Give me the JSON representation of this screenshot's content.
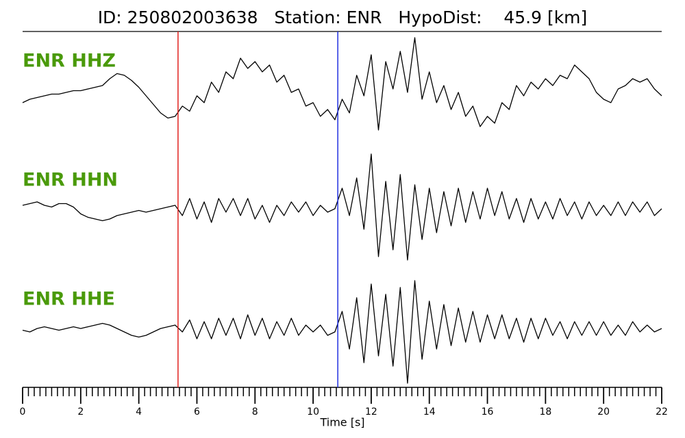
{
  "chart_data": {
    "type": "seismogram",
    "title": "ID: 250802003638   Station: ENR   HypoDist:    45.9 [km]",
    "x_label": "Time [s]",
    "xlim": [
      0,
      22
    ],
    "xticks": [
      0,
      2,
      4,
      6,
      8,
      10,
      12,
      14,
      16,
      18,
      20,
      22
    ],
    "xminor_ticks": [
      0.2,
      0.4,
      0.6,
      0.8,
      1,
      1.2,
      1.4,
      1.6,
      1.8,
      2.2,
      2.4,
      2.6,
      2.8,
      3,
      3.2,
      3.4,
      3.6,
      3.8,
      4.2,
      4.4,
      4.6,
      4.8,
      5,
      5.2,
      5.4,
      5.6,
      5.8,
      6.2,
      6.4,
      6.6,
      6.8,
      7,
      7.2,
      7.4,
      7.6,
      7.8,
      8.2,
      8.4,
      8.6,
      8.8,
      9,
      9.2,
      9.4,
      9.6,
      9.8,
      10.2,
      10.4,
      10.6,
      10.8,
      11,
      11.2,
      11.4,
      11.6,
      11.8,
      12.2,
      12.4,
      12.6,
      12.8,
      13,
      13.2,
      13.4,
      13.6,
      13.8,
      14.2,
      14.4,
      14.6,
      14.8,
      15,
      15.2,
      15.4,
      15.6,
      15.8,
      16.2,
      16.4,
      16.6,
      16.8,
      17,
      17.2,
      17.4,
      17.6,
      17.8,
      18.2,
      18.4,
      18.6,
      18.8,
      19,
      19.2,
      19.4,
      19.6,
      19.8,
      20.2,
      20.4,
      20.6,
      20.8,
      21,
      21.2,
      21.4,
      21.6,
      21.8
    ],
    "ylim": [
      -1.7,
      1.7
    ],
    "picks": [
      {
        "time": 5.35,
        "color": "#e0201c"
      },
      {
        "time": 10.85,
        "color": "#1f2fe0"
      }
    ],
    "x": [
      0,
      0.25,
      0.5,
      0.75,
      1,
      1.25,
      1.5,
      1.75,
      2,
      2.25,
      2.5,
      2.75,
      3,
      3.25,
      3.5,
      3.75,
      4,
      4.25,
      4.5,
      4.75,
      5,
      5.25,
      5.5,
      5.75,
      6,
      6.25,
      6.5,
      6.75,
      7,
      7.25,
      7.5,
      7.75,
      8,
      8.25,
      8.5,
      8.75,
      9,
      9.25,
      9.5,
      9.75,
      10,
      10.25,
      10.5,
      10.75,
      11,
      11.25,
      11.5,
      11.75,
      12,
      12.25,
      12.5,
      12.75,
      13,
      13.25,
      13.5,
      13.75,
      14,
      14.25,
      14.5,
      14.75,
      15,
      15.25,
      15.5,
      15.75,
      16,
      16.25,
      16.5,
      16.75,
      17,
      17.25,
      17.5,
      17.75,
      18,
      18.25,
      18.5,
      18.75,
      19,
      19.25,
      19.5,
      19.75,
      20,
      20.25,
      20.5,
      20.75,
      21,
      21.25,
      21.5,
      21.75,
      22
    ],
    "series": [
      {
        "name": "ENR HHZ",
        "color": "#000000",
        "values": [
          -0.2,
          -0.1,
          -0.05,
          0,
          0.05,
          0.05,
          0.1,
          0.15,
          0.15,
          0.2,
          0.25,
          0.3,
          0.5,
          0.65,
          0.6,
          0.45,
          0.25,
          0,
          -0.25,
          -0.5,
          -0.65,
          -0.6,
          -0.3,
          -0.45,
          0,
          -0.2,
          0.4,
          0.1,
          0.7,
          0.5,
          1.1,
          0.8,
          1.0,
          0.7,
          0.9,
          0.4,
          0.6,
          0.1,
          0.2,
          -0.3,
          -0.2,
          -0.6,
          -0.4,
          -0.7,
          -0.1,
          -0.5,
          0.6,
          0,
          1.2,
          -1.0,
          1.0,
          0.2,
          1.3,
          0.1,
          1.7,
          -0.1,
          0.7,
          -0.2,
          0.3,
          -0.4,
          0.1,
          -0.6,
          -0.3,
          -0.9,
          -0.6,
          -0.8,
          -0.2,
          -0.4,
          0.3,
          0,
          0.4,
          0.2,
          0.5,
          0.3,
          0.6,
          0.5,
          0.9,
          0.7,
          0.5,
          0.1,
          -0.1,
          -0.2,
          0.2,
          0.3,
          0.5,
          0.4,
          0.5,
          0.2,
          0
        ]
      },
      {
        "name": "ENR HHN",
        "color": "#000000",
        "values": [
          0.1,
          0.15,
          0.2,
          0.1,
          0.05,
          0.15,
          0.15,
          0.05,
          -0.15,
          -0.25,
          -0.3,
          -0.35,
          -0.3,
          -0.2,
          -0.15,
          -0.1,
          -0.05,
          -0.1,
          -0.05,
          0,
          0.05,
          0.1,
          -0.2,
          0.3,
          -0.3,
          0.2,
          -0.4,
          0.3,
          -0.1,
          0.3,
          -0.2,
          0.3,
          -0.3,
          0.1,
          -0.4,
          0.1,
          -0.2,
          0.2,
          -0.1,
          0.2,
          -0.2,
          0.1,
          -0.1,
          0,
          0.6,
          -0.2,
          0.9,
          -0.6,
          1.6,
          -1.4,
          0.8,
          -1.2,
          1.0,
          -1.5,
          0.7,
          -0.9,
          0.6,
          -0.7,
          0.5,
          -0.5,
          0.6,
          -0.4,
          0.5,
          -0.3,
          0.6,
          -0.2,
          0.5,
          -0.3,
          0.3,
          -0.4,
          0.3,
          -0.3,
          0.2,
          -0.3,
          0.3,
          -0.2,
          0.2,
          -0.3,
          0.2,
          -0.2,
          0.1,
          -0.2,
          0.2,
          -0.2,
          0.2,
          -0.1,
          0.2,
          -0.2,
          0
        ]
      },
      {
        "name": "ENR HHE",
        "color": "#000000",
        "values": [
          -0.05,
          -0.1,
          0,
          0.05,
          0,
          -0.05,
          0,
          0.05,
          0,
          0.05,
          0.1,
          0.15,
          0.1,
          0,
          -0.1,
          -0.2,
          -0.25,
          -0.2,
          -0.1,
          0,
          0.05,
          0.1,
          -0.1,
          0.25,
          -0.3,
          0.2,
          -0.3,
          0.3,
          -0.2,
          0.3,
          -0.3,
          0.4,
          -0.2,
          0.3,
          -0.3,
          0.2,
          -0.2,
          0.3,
          -0.2,
          0.1,
          -0.1,
          0.1,
          -0.2,
          -0.1,
          0.5,
          -0.6,
          0.9,
          -1.0,
          1.3,
          -0.8,
          1.0,
          -1.1,
          1.2,
          -1.6,
          1.4,
          -0.9,
          0.8,
          -0.6,
          0.7,
          -0.5,
          0.6,
          -0.4,
          0.5,
          -0.4,
          0.4,
          -0.3,
          0.4,
          -0.3,
          0.3,
          -0.4,
          0.3,
          -0.3,
          0.3,
          -0.2,
          0.2,
          -0.3,
          0.2,
          -0.2,
          0.2,
          -0.2,
          0.2,
          -0.2,
          0.1,
          -0.2,
          0.2,
          -0.1,
          0.1,
          -0.1,
          0
        ]
      }
    ]
  }
}
